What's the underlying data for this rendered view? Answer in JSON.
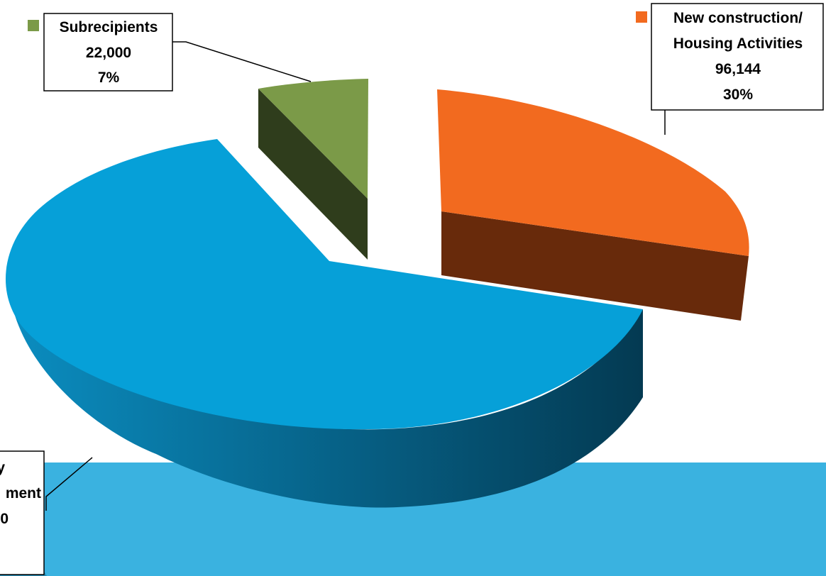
{
  "chart_data": {
    "type": "pie",
    "title": "",
    "categories": [
      "Subrecipients",
      "New construction/ Housing Activities",
      ""
    ],
    "values": [
      22000,
      96144,
      null
    ],
    "series": [
      {
        "name": "",
        "slices": [
          {
            "name": "Subrecipients",
            "value": 22000,
            "value_label": "22,000",
            "percent": 7,
            "percent_label": "7%",
            "color": "#7b9a48",
            "label_lines": [
              "Subrecipients",
              "22,000",
              "7%"
            ]
          },
          {
            "name": "New construction/ Housing Activities",
            "value": 96144,
            "value_label": "96,144",
            "percent": 30,
            "percent_label": "30%",
            "color": "#f26a1f",
            "label_lines": [
              "New construction/",
              "Housing Activities",
              "96,144",
              "30%"
            ]
          },
          {
            "name": "",
            "value": null,
            "percent": 63,
            "color": "#06a0d8",
            "label_lines": [
              "y",
              "ment",
              "0"
            ]
          }
        ]
      }
    ],
    "legend_placement": "in labels",
    "three_d": true,
    "exploded": true
  },
  "colors": {
    "background_band": "#3ab2e0",
    "leader_line": "#000000"
  }
}
